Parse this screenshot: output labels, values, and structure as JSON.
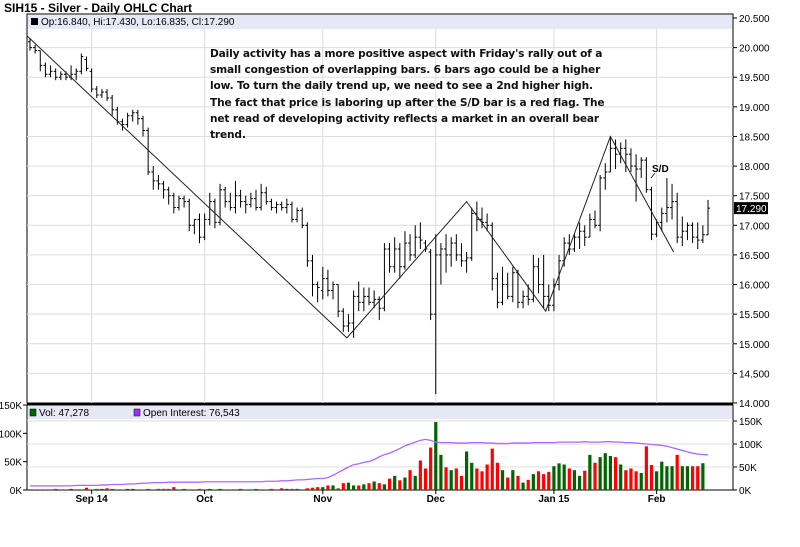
{
  "title": "SIH15 - Silver - Daily OHLC Chart",
  "price_legend": "Op:16.840, Hi:17.430, Lo:16.835, Cl:17.290",
  "last_price_label": "17.290",
  "annotation": {
    "lines": [
      "Daily activity has a more positive aspect with Friday's rally out of a",
      "small congestion of overlapping bars.  6 bars ago could be a higher",
      "low.  To turn the daily trend up, we need to see a 2nd higher high.",
      "The fact that price is laboring up after the S/D bar is a red flag.  The",
      "net read of developing activity reflects a market in an overall bear",
      "trend."
    ],
    "sd_label": "S/D"
  },
  "volume_legend": {
    "vol": "Vol: 47,278",
    "oi": "Open Interest: 76,543"
  },
  "colors": {
    "up": "#006400",
    "down": "#ff0000",
    "oi": "#b266ff",
    "header": "#e6e8f5",
    "grid": "#dcdcdc",
    "price_bar": "#000000"
  },
  "chart_data": [
    {
      "type": "ohlc",
      "ylim": [
        14.0,
        20.5
      ],
      "y_ticks": [
        "20.500",
        "20.000",
        "19.500",
        "19.000",
        "18.500",
        "18.000",
        "17.500",
        "17.000",
        "16.500",
        "16.000",
        "15.500",
        "15.000",
        "14.500",
        "14.000"
      ],
      "x_ticks": [
        {
          "label": "Sep 14",
          "bar": 12
        },
        {
          "label": "Oct",
          "bar": 34
        },
        {
          "label": "Nov",
          "bar": 57
        },
        {
          "label": "Dec",
          "bar": 79
        },
        {
          "label": "Jan 15",
          "bar": 102
        },
        {
          "label": "Feb",
          "bar": 122
        }
      ],
      "ohlc": [
        [
          20.1,
          20.15,
          19.95,
          20.0
        ],
        [
          20.0,
          20.05,
          19.9,
          19.95
        ],
        [
          19.95,
          19.95,
          19.6,
          19.7
        ],
        [
          19.7,
          19.75,
          19.5,
          19.55
        ],
        [
          19.55,
          19.7,
          19.5,
          19.6
        ],
        [
          19.6,
          19.65,
          19.45,
          19.5
        ],
        [
          19.5,
          19.6,
          19.45,
          19.55
        ],
        [
          19.55,
          19.6,
          19.45,
          19.5
        ],
        [
          19.5,
          19.7,
          19.45,
          19.55
        ],
        [
          19.55,
          19.65,
          19.45,
          19.6
        ],
        [
          19.6,
          19.9,
          19.55,
          19.85
        ],
        [
          19.8,
          19.85,
          19.6,
          19.65
        ],
        [
          19.6,
          19.65,
          19.25,
          19.3
        ],
        [
          19.3,
          19.35,
          19.15,
          19.2
        ],
        [
          19.2,
          19.3,
          19.15,
          19.25
        ],
        [
          19.25,
          19.3,
          19.1,
          19.15
        ],
        [
          19.15,
          19.2,
          18.85,
          18.95
        ],
        [
          18.95,
          19.0,
          18.7,
          18.75
        ],
        [
          18.75,
          18.8,
          18.6,
          18.7
        ],
        [
          18.7,
          18.9,
          18.65,
          18.85
        ],
        [
          18.85,
          18.95,
          18.75,
          18.9
        ],
        [
          18.9,
          18.95,
          18.7,
          18.8
        ],
        [
          18.8,
          18.85,
          18.5,
          18.6
        ],
        [
          18.6,
          18.65,
          17.85,
          17.9
        ],
        [
          17.9,
          18.0,
          17.6,
          17.75
        ],
        [
          17.75,
          17.85,
          17.6,
          17.7
        ],
        [
          17.7,
          17.75,
          17.45,
          17.6
        ],
        [
          17.6,
          17.65,
          17.35,
          17.5
        ],
        [
          17.5,
          17.55,
          17.2,
          17.3
        ],
        [
          17.3,
          17.5,
          17.25,
          17.45
        ],
        [
          17.45,
          17.5,
          17.3,
          17.4
        ],
        [
          17.4,
          17.45,
          16.9,
          17.0
        ],
        [
          17.0,
          17.1,
          16.85,
          17.1
        ],
        [
          17.1,
          17.2,
          16.7,
          16.8
        ],
        [
          16.8,
          17.2,
          16.75,
          17.1
        ],
        [
          17.1,
          17.55,
          17.0,
          17.4
        ],
        [
          17.4,
          17.45,
          16.95,
          17.05
        ],
        [
          17.05,
          17.7,
          17.0,
          17.6
        ],
        [
          17.6,
          17.65,
          17.3,
          17.4
        ],
        [
          17.4,
          17.55,
          17.25,
          17.3
        ],
        [
          17.3,
          17.75,
          17.2,
          17.5
        ],
        [
          17.5,
          17.6,
          17.3,
          17.4
        ],
        [
          17.4,
          17.5,
          17.2,
          17.35
        ],
        [
          17.35,
          17.55,
          17.3,
          17.45
        ],
        [
          17.45,
          17.6,
          17.25,
          17.3
        ],
        [
          17.3,
          17.7,
          17.25,
          17.55
        ],
        [
          17.55,
          17.65,
          17.35,
          17.4
        ],
        [
          17.4,
          17.45,
          17.25,
          17.3
        ],
        [
          17.3,
          17.4,
          17.2,
          17.35
        ],
        [
          17.35,
          17.4,
          17.25,
          17.3
        ],
        [
          17.3,
          17.45,
          17.2,
          17.35
        ],
        [
          17.35,
          17.4,
          17.05,
          17.1
        ],
        [
          17.1,
          17.3,
          17.05,
          17.25
        ],
        [
          17.25,
          17.3,
          16.95,
          17.0
        ],
        [
          17.0,
          17.05,
          16.3,
          16.4
        ],
        [
          16.4,
          16.5,
          15.8,
          16.0
        ],
        [
          16.0,
          16.05,
          15.7,
          15.95
        ],
        [
          15.9,
          16.3,
          15.75,
          16.1
        ],
        [
          16.1,
          16.25,
          15.8,
          15.9
        ],
        [
          15.9,
          16.05,
          15.75,
          16.0
        ],
        [
          16.0,
          16.0,
          15.45,
          15.55
        ],
        [
          15.55,
          15.6,
          15.2,
          15.3
        ],
        [
          15.3,
          15.5,
          15.2,
          15.35
        ],
        [
          15.35,
          15.9,
          15.1,
          15.8
        ],
        [
          15.8,
          16.05,
          15.55,
          15.7
        ],
        [
          15.7,
          15.95,
          15.55,
          15.8
        ],
        [
          15.8,
          15.95,
          15.65,
          15.7
        ],
        [
          15.7,
          15.9,
          15.6,
          15.75
        ],
        [
          15.75,
          15.8,
          15.4,
          15.6
        ],
        [
          15.6,
          16.7,
          15.55,
          16.6
        ],
        [
          16.6,
          16.7,
          16.2,
          16.3
        ],
        [
          16.3,
          16.8,
          16.2,
          16.6
        ],
        [
          16.6,
          16.7,
          16.1,
          16.3
        ],
        [
          16.3,
          16.9,
          16.25,
          16.7
        ],
        [
          16.7,
          16.85,
          16.4,
          16.5
        ],
        [
          16.5,
          17.0,
          16.45,
          16.8
        ],
        [
          16.8,
          17.05,
          16.6,
          16.75
        ],
        [
          16.7,
          16.75,
          16.55,
          16.6
        ],
        [
          16.55,
          16.6,
          15.4,
          15.5
        ],
        [
          15.5,
          16.85,
          14.15,
          16.5
        ],
        [
          16.5,
          16.7,
          16.0,
          16.6
        ],
        [
          16.6,
          16.85,
          16.2,
          16.5
        ],
        [
          16.5,
          16.8,
          16.3,
          16.7
        ],
        [
          16.7,
          16.85,
          16.4,
          16.5
        ],
        [
          16.5,
          16.7,
          16.3,
          16.4
        ],
        [
          16.4,
          16.55,
          16.2,
          16.45
        ],
        [
          16.45,
          17.3,
          16.4,
          17.2
        ],
        [
          17.2,
          17.4,
          16.9,
          17.1
        ],
        [
          17.1,
          17.3,
          16.95,
          17.05
        ],
        [
          17.05,
          17.2,
          16.9,
          17.0
        ],
        [
          17.0,
          17.05,
          15.9,
          16.1
        ],
        [
          16.1,
          16.2,
          15.6,
          15.7
        ],
        [
          15.7,
          16.3,
          15.65,
          16.0
        ],
        [
          16.0,
          16.2,
          15.75,
          15.8
        ],
        [
          15.8,
          16.3,
          15.7,
          16.2
        ],
        [
          16.2,
          16.25,
          15.6,
          15.7
        ],
        [
          15.7,
          15.9,
          15.6,
          15.8
        ],
        [
          15.8,
          16.0,
          15.65,
          15.75
        ],
        [
          15.75,
          16.5,
          15.7,
          16.3
        ],
        [
          16.3,
          16.45,
          15.85,
          16.0
        ],
        [
          16.0,
          16.5,
          15.6,
          15.8
        ],
        [
          15.8,
          16.0,
          15.55,
          15.65
        ],
        [
          15.65,
          16.1,
          15.55,
          16.0
        ],
        [
          16.0,
          16.5,
          15.9,
          16.4
        ],
        [
          16.4,
          16.8,
          16.3,
          16.7
        ],
        [
          16.7,
          16.85,
          16.5,
          16.6
        ],
        [
          16.6,
          16.85,
          16.55,
          16.8
        ],
        [
          16.8,
          17.05,
          16.6,
          16.9
        ],
        [
          16.9,
          17.0,
          16.65,
          16.8
        ],
        [
          16.8,
          17.2,
          16.8,
          17.1
        ],
        [
          17.1,
          17.25,
          16.95,
          17.0
        ],
        [
          17.0,
          17.85,
          16.9,
          17.8
        ],
        [
          17.8,
          18.05,
          17.6,
          17.9
        ],
        [
          17.9,
          18.5,
          17.9,
          18.3
        ],
        [
          18.3,
          18.45,
          17.95,
          18.2
        ],
        [
          18.2,
          18.4,
          18.05,
          18.3
        ],
        [
          18.3,
          18.45,
          17.9,
          18.2
        ],
        [
          18.2,
          18.3,
          17.9,
          18.0
        ],
        [
          18.0,
          18.2,
          17.4,
          17.95
        ],
        [
          17.95,
          18.15,
          17.8,
          18.1
        ],
        [
          18.1,
          18.15,
          17.55,
          17.6
        ],
        [
          17.6,
          17.65,
          16.75,
          16.85
        ],
        [
          16.85,
          17.1,
          16.8,
          17.05
        ],
        [
          17.05,
          17.3,
          16.9,
          17.2
        ],
        [
          17.2,
          17.8,
          17.05,
          17.3
        ],
        [
          17.3,
          17.7,
          17.1,
          17.4
        ],
        [
          17.4,
          17.55,
          16.7,
          16.8
        ],
        [
          16.8,
          17.15,
          16.65,
          16.9
        ],
        [
          16.9,
          17.05,
          16.75,
          17.0
        ],
        [
          17.0,
          17.05,
          16.7,
          16.8
        ],
        [
          16.8,
          17.05,
          16.6,
          16.75
        ],
        [
          16.75,
          17.0,
          16.7,
          16.84
        ],
        [
          16.84,
          17.43,
          16.835,
          17.29
        ]
      ],
      "trendlines": [
        [
          -0.6,
          20.2
        ],
        [
          61.7,
          15.1
        ],
        [
          85,
          17.4
        ],
        [
          100.4,
          15.55
        ],
        [
          113,
          18.5
        ],
        [
          125.3,
          16.55
        ]
      ]
    },
    {
      "type": "bar",
      "name_vol": "Vol",
      "name_oi": "Open Interest",
      "ylim_vol_k": [
        0,
        150
      ],
      "ylim_oi_k": [
        0,
        150
      ],
      "y_ticks_left": [
        "150K",
        "100K",
        "50K",
        "0K"
      ],
      "y_ticks_right": [
        "150K",
        "100K",
        "50K",
        "0K"
      ],
      "volume_k": [
        0,
        1,
        1,
        1,
        1,
        2,
        1,
        1,
        2,
        1,
        1,
        4,
        1,
        2,
        2,
        3,
        2,
        1,
        1,
        2,
        2,
        1,
        1,
        2,
        1,
        2,
        2,
        2,
        5,
        1,
        2,
        1,
        1,
        2,
        1,
        2,
        1,
        2,
        1,
        1,
        1,
        2,
        1,
        1,
        2,
        1,
        1,
        2,
        1,
        3,
        2,
        2,
        2,
        1,
        3,
        4,
        5,
        5,
        8,
        8,
        3,
        12,
        13,
        8,
        8,
        10,
        12,
        15,
        12,
        10,
        20,
        25,
        17,
        22,
        35,
        25,
        52,
        38,
        75,
        120,
        62,
        40,
        35,
        38,
        25,
        68,
        48,
        38,
        33,
        45,
        73,
        48,
        35,
        22,
        35,
        25,
        13,
        18,
        28,
        33,
        28,
        32,
        42,
        47,
        45,
        38,
        35,
        25,
        34,
        62,
        48,
        58,
        65,
        60,
        58,
        45,
        35,
        38,
        33,
        30,
        77,
        44,
        33,
        50,
        42,
        42,
        62,
        42,
        42,
        42,
        42,
        47.278
      ],
      "open_interest_k": [
        9,
        9,
        9,
        9,
        9,
        9,
        9,
        9,
        9,
        10,
        10,
        10,
        10,
        10,
        11,
        11,
        12,
        12,
        12,
        13,
        13,
        14,
        15,
        15,
        16,
        16,
        16,
        17,
        17,
        17,
        17,
        17,
        17,
        17,
        18,
        18,
        18,
        18,
        18,
        18,
        18,
        18,
        18,
        18,
        18,
        18,
        19,
        19,
        19,
        20,
        20,
        21,
        22,
        22,
        23,
        24,
        25,
        25,
        27,
        32,
        38,
        44,
        50,
        55,
        57,
        60,
        62,
        66,
        72,
        77,
        80,
        85,
        90,
        96,
        100,
        104,
        108,
        110,
        108,
        104,
        103,
        103,
        103,
        102,
        102,
        102,
        103,
        103,
        103,
        102,
        102,
        101,
        101,
        101,
        102,
        102,
        102,
        102,
        103,
        103,
        103,
        103,
        103,
        104,
        104,
        104,
        104,
        104,
        105,
        104,
        104,
        104,
        105,
        105,
        104,
        104,
        103,
        103,
        102,
        101,
        100,
        99,
        98,
        97,
        95,
        92,
        89,
        86,
        83,
        80,
        78,
        77,
        76.543
      ]
    }
  ]
}
